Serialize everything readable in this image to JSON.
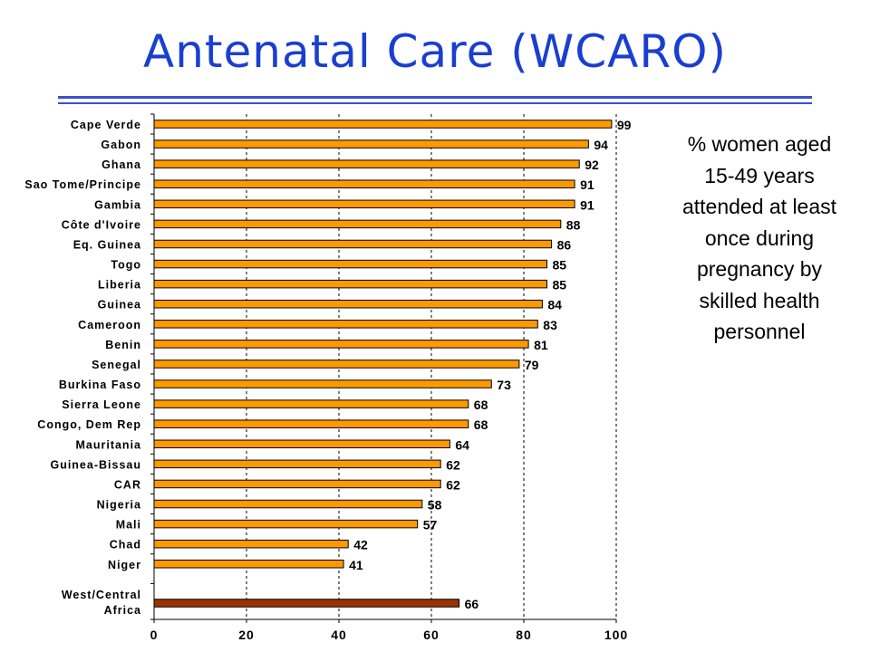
{
  "page": {
    "title": "Antenatal Care (WCARO)",
    "note_lines": [
      "% women aged",
      "15-49 years",
      "attended at least",
      "once during",
      "pregnancy by",
      "skilled health",
      "personnel"
    ]
  },
  "colors": {
    "bar": "#ff9900",
    "bar_regional": "#993300",
    "bar_outline": "#000000",
    "title": "#1a3fd0",
    "rule": "#3a4fd6"
  },
  "chart_data": {
    "type": "bar",
    "orientation": "horizontal",
    "title": "",
    "xlabel": "",
    "ylabel": "",
    "xlim": [
      0,
      100
    ],
    "x_ticks": [
      0,
      20,
      40,
      60,
      80,
      100
    ],
    "grid": "vertical dashed at 20, 40, 60, 80, 100",
    "categories": [
      "Cape Verde",
      "Gabon",
      "Ghana",
      "Sao Tome/Principe",
      "Gambia",
      "Côte d'Ivoire",
      "Eq. Guinea",
      "Togo",
      "Liberia",
      "Guinea",
      "Cameroon",
      "Benin",
      "Senegal",
      "Burkina Faso",
      "Sierra Leone",
      "Congo, Dem Rep",
      "Mauritania",
      "Guinea-Bissau",
      "CAR",
      "Nigeria",
      "Mali",
      "Chad",
      "Niger",
      "West/Central Africa"
    ],
    "category_label_lines": [
      [
        "Cape Verde"
      ],
      [
        "Gabon"
      ],
      [
        "Ghana"
      ],
      [
        "Sao Tome/Principe"
      ],
      [
        "Gambia"
      ],
      [
        "Côte d'Ivoire"
      ],
      [
        "Eq. Guinea"
      ],
      [
        "Togo"
      ],
      [
        "Liberia"
      ],
      [
        "Guinea"
      ],
      [
        "Cameroon"
      ],
      [
        "Benin"
      ],
      [
        "Senegal"
      ],
      [
        "Burkina Faso"
      ],
      [
        "Sierra Leone"
      ],
      [
        "Congo, Dem Rep"
      ],
      [
        "Mauritania"
      ],
      [
        "Guinea-Bissau"
      ],
      [
        "CAR"
      ],
      [
        "Nigeria"
      ],
      [
        "Mali"
      ],
      [
        "Chad"
      ],
      [
        "Niger"
      ],
      [
        "West/Central",
        "Africa"
      ]
    ],
    "values": [
      99,
      94,
      92,
      91,
      91,
      88,
      86,
      85,
      85,
      84,
      83,
      81,
      79,
      73,
      68,
      68,
      64,
      62,
      62,
      58,
      57,
      42,
      41,
      66
    ],
    "highlight": "West/Central Africa"
  }
}
